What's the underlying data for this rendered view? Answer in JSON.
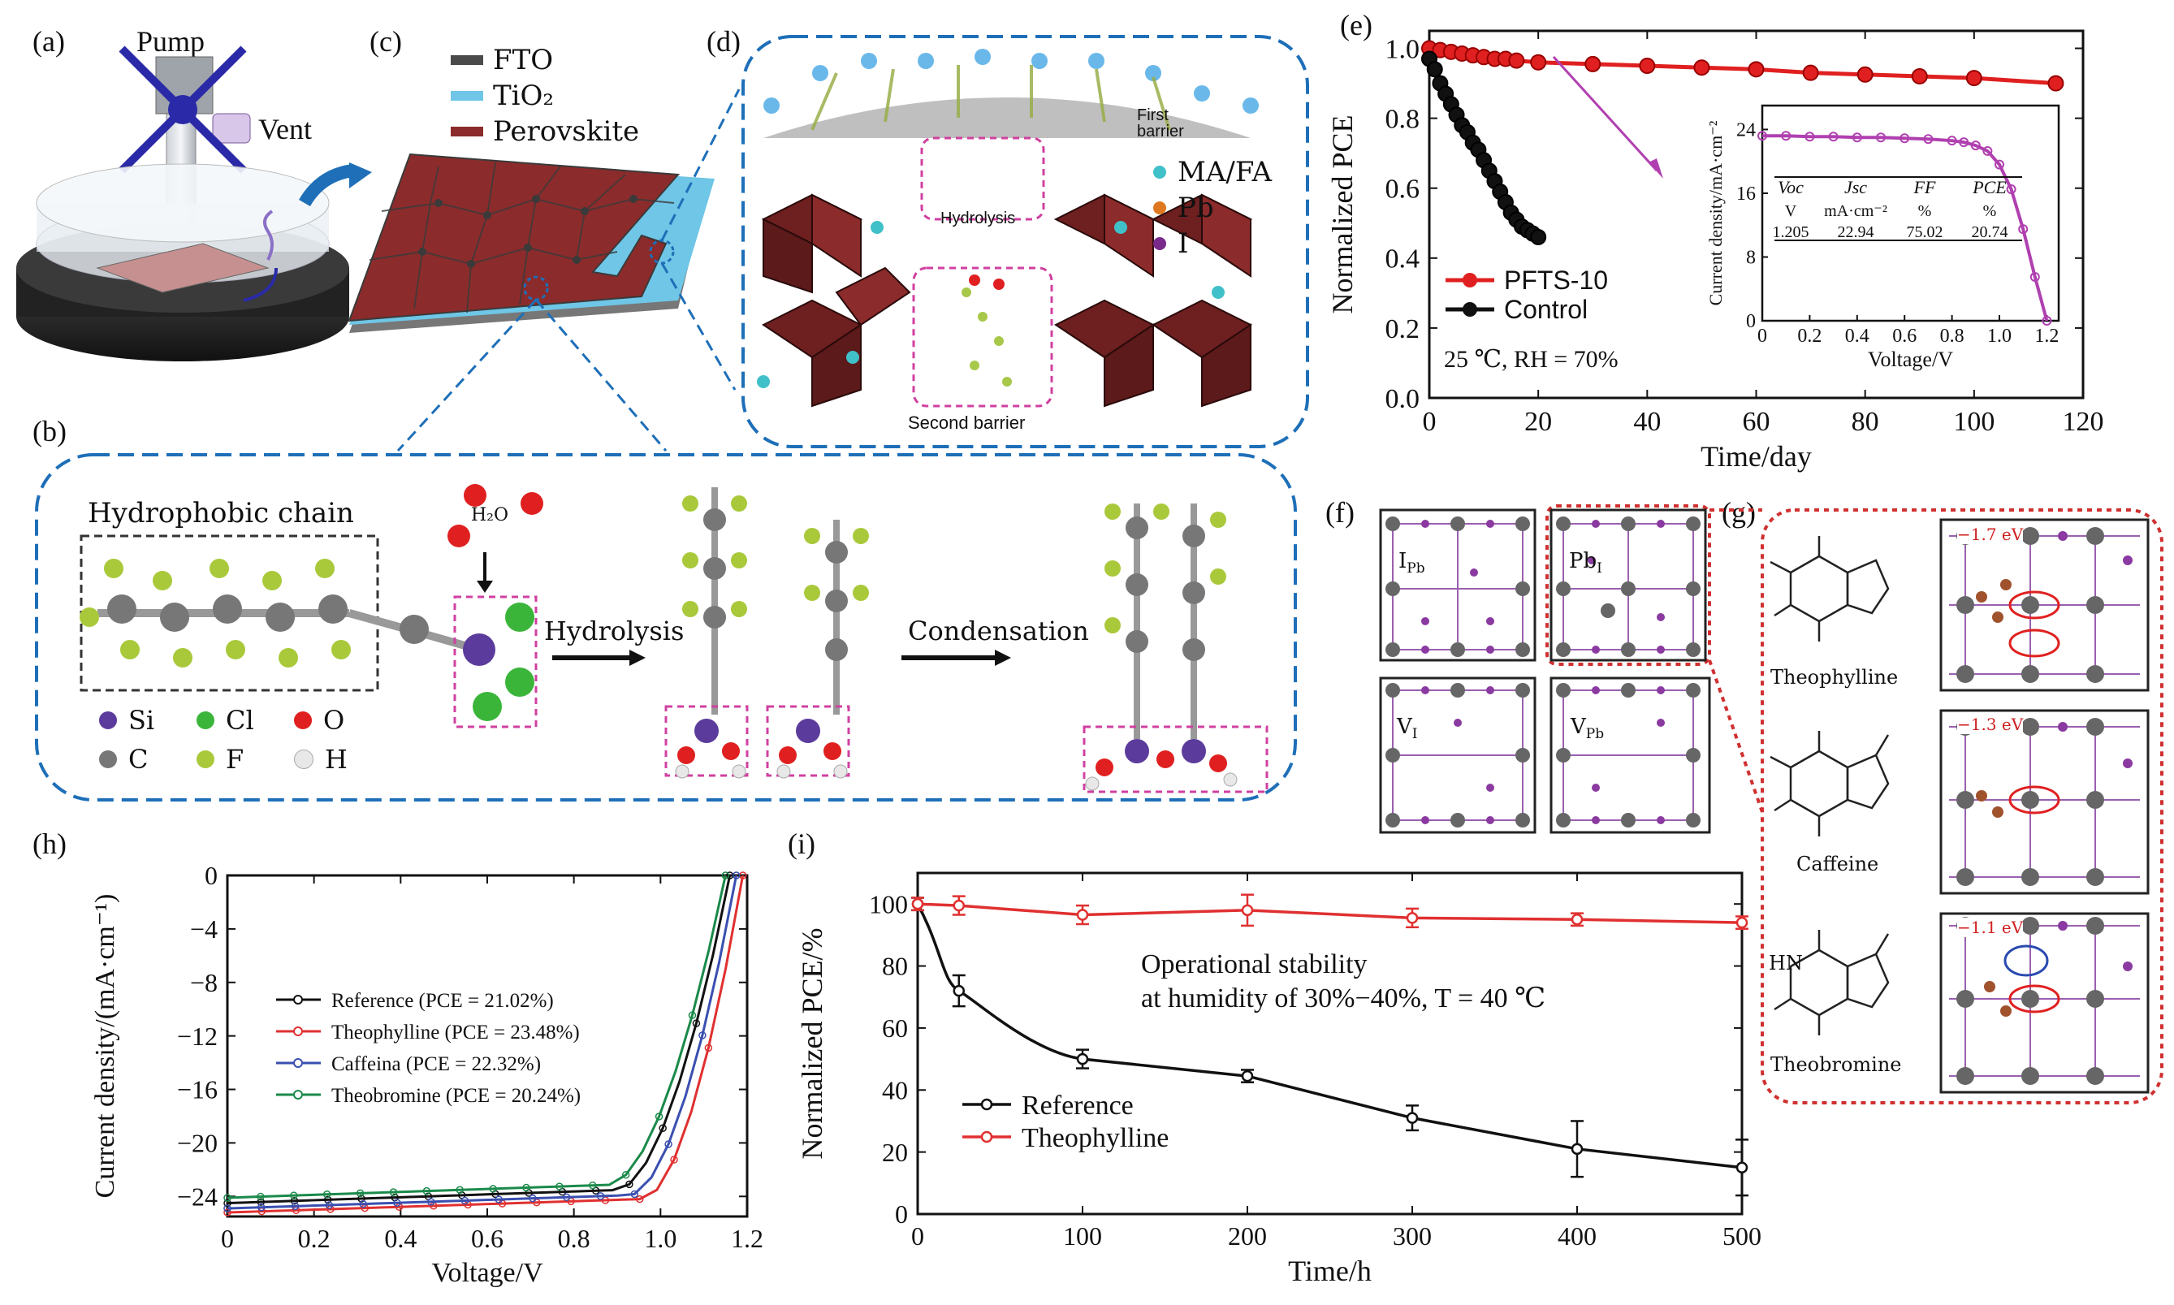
{
  "panels": {
    "a": {
      "label": "(a)",
      "pump": "Pump",
      "vent": "Vent"
    },
    "b": {
      "label": "(b)",
      "chain": "Hydrophobic chain",
      "water": "H₂O",
      "hydrolysis": "Hydrolysis",
      "condensation": "Condensation",
      "legend": [
        {
          "sym": "Si",
          "color": "#5b3c9c"
        },
        {
          "sym": "Cl",
          "color": "#3ab53a"
        },
        {
          "sym": "O",
          "color": "#e02020"
        },
        {
          "sym": "C",
          "color": "#777777"
        },
        {
          "sym": "F",
          "color": "#a9c93a"
        },
        {
          "sym": "H",
          "color": "#e8e8e8"
        }
      ]
    },
    "c": {
      "label": "(c)",
      "legend": [
        {
          "name": "FTO",
          "color": "#4a4a4a"
        },
        {
          "name": "TiO₂",
          "color": "#6fc6e6"
        },
        {
          "name": "Perovskite",
          "color": "#8c2b2b"
        }
      ]
    },
    "d": {
      "label": "(d)",
      "first": "First barrier",
      "hydrolysis": "Hydrolysis",
      "second": "Second barrier",
      "legend": [
        {
          "name": "MA/FA",
          "color": "#40c0c8"
        },
        {
          "name": "Pb",
          "color": "#e07820"
        },
        {
          "name": "I",
          "color": "#7a2a8a"
        }
      ]
    },
    "f": {
      "label": "(f)",
      "cells": [
        "I",
        "Pb",
        "Pb",
        "I",
        "V",
        "I",
        "V",
        "Pb"
      ]
    },
    "g": {
      "label": "(g)",
      "molecules": [
        "Theophylline",
        "Caffeine",
        "Theobromine"
      ],
      "energies": [
        "−1.7 eV",
        "−1.3 eV",
        "−1.1 eV"
      ],
      "hn": "HN"
    }
  },
  "chart_data": [
    {
      "id": "e",
      "label": "(e)",
      "type": "line",
      "xlabel": "Time/day",
      "ylabel": "Normalized PCE",
      "xlim": [
        0,
        120
      ],
      "ylim": [
        0.0,
        1.05
      ],
      "xticks": [
        0,
        20,
        40,
        60,
        80,
        100,
        120
      ],
      "yticks": [
        0.0,
        0.2,
        0.4,
        0.6,
        0.8,
        1.0
      ],
      "annotation": "25 ℃, RH = 70%",
      "series": [
        {
          "name": "PFTS-10",
          "color": "#e02020",
          "x": [
            0,
            2,
            4,
            6,
            8,
            10,
            12,
            14,
            16,
            20,
            30,
            40,
            50,
            60,
            70,
            80,
            90,
            100,
            115
          ],
          "y": [
            1.0,
            0.995,
            0.99,
            0.985,
            0.98,
            0.975,
            0.97,
            0.97,
            0.965,
            0.96,
            0.955,
            0.95,
            0.945,
            0.94,
            0.93,
            0.925,
            0.92,
            0.915,
            0.9
          ]
        },
        {
          "name": "Control",
          "color": "#111111",
          "x": [
            0,
            1,
            2,
            3,
            4,
            5,
            6,
            7,
            8,
            9,
            10,
            11,
            12,
            13,
            14,
            15,
            16,
            17,
            18,
            19,
            20
          ],
          "y": [
            0.97,
            0.94,
            0.9,
            0.87,
            0.84,
            0.81,
            0.78,
            0.76,
            0.73,
            0.71,
            0.68,
            0.65,
            0.62,
            0.59,
            0.56,
            0.53,
            0.51,
            0.49,
            0.48,
            0.47,
            0.46
          ]
        }
      ],
      "inset": {
        "xlabel": "Voltage/V",
        "ylabel": "Current density/mA·cm⁻²",
        "xlim": [
          0,
          1.25
        ],
        "ylim": [
          0,
          27
        ],
        "xticks": [
          0,
          0.2,
          0.4,
          0.6,
          0.8,
          1.0,
          1.2
        ],
        "yticks": [
          0,
          8,
          16,
          24
        ],
        "table": {
          "headers": [
            "Voc",
            "Jsc",
            "FF",
            "PCE"
          ],
          "units": [
            "V",
            "mA·cm⁻²",
            "%",
            "%"
          ],
          "values": [
            "1.205",
            "22.94",
            "75.02",
            "20.74"
          ]
        },
        "curve": {
          "color": "#b040b0",
          "x": [
            0,
            0.1,
            0.2,
            0.3,
            0.4,
            0.5,
            0.6,
            0.7,
            0.8,
            0.85,
            0.9,
            0.95,
            1.0,
            1.05,
            1.1,
            1.15,
            1.2
          ],
          "y": [
            23.2,
            23.2,
            23.1,
            23.1,
            23.0,
            23.0,
            22.9,
            22.8,
            22.6,
            22.4,
            22.0,
            21.3,
            19.6,
            16.5,
            11.5,
            5.5,
            0
          ]
        }
      }
    },
    {
      "id": "h",
      "label": "(h)",
      "type": "line",
      "xlabel": "Voltage/V",
      "ylabel": "Current density/(mA·cm⁻¹)",
      "xlim": [
        0,
        1.2
      ],
      "ylim": [
        -25.5,
        0
      ],
      "xticks": [
        0,
        0.2,
        0.4,
        0.6,
        0.8,
        1.0,
        1.2
      ],
      "yticks": [
        -24,
        -20,
        -16,
        -12,
        -8,
        -4,
        0
      ],
      "series": [
        {
          "name": "Reference (PCE = 21.02%)",
          "color": "#111111",
          "jsc": -24.5,
          "voc": 1.16,
          "knee": 0.9
        },
        {
          "name": "Theophylline (PCE = 23.48%)",
          "color": "#e03030",
          "jsc": -25.2,
          "voc": 1.19,
          "knee": 0.96
        },
        {
          "name": "Caffeina (PCE = 22.32%)",
          "color": "#3a4fb0",
          "jsc": -24.9,
          "voc": 1.175,
          "knee": 0.93
        },
        {
          "name": "Theobromine (PCE = 20.24%)",
          "color": "#1a8a4a",
          "jsc": -24.1,
          "voc": 1.15,
          "knee": 0.88
        }
      ]
    },
    {
      "id": "i",
      "label": "(i)",
      "type": "line",
      "xlabel": "Time/h",
      "ylabel": "Normalized PCE/%",
      "xlim": [
        0,
        500
      ],
      "ylim": [
        0,
        110
      ],
      "xticks": [
        0,
        100,
        200,
        300,
        400,
        500
      ],
      "yticks": [
        0,
        20,
        40,
        60,
        80,
        100
      ],
      "annotation": [
        "Operational stability",
        "at humidity of 30%−40%, T = 40 ℃"
      ],
      "series": [
        {
          "name": "Reference",
          "color": "#111111",
          "x": [
            0,
            25,
            100,
            200,
            300,
            400,
            500
          ],
          "y": [
            100,
            72,
            50,
            44.5,
            31,
            21,
            15
          ],
          "err": [
            2,
            5,
            3,
            2,
            4,
            9,
            9
          ]
        },
        {
          "name": "Theophylline",
          "color": "#e03030",
          "x": [
            0,
            25,
            100,
            200,
            300,
            400,
            500
          ],
          "y": [
            100,
            99.5,
            96.5,
            98,
            95.5,
            95,
            94
          ],
          "err": [
            2,
            3,
            3,
            5,
            3,
            2,
            2
          ]
        }
      ]
    }
  ]
}
